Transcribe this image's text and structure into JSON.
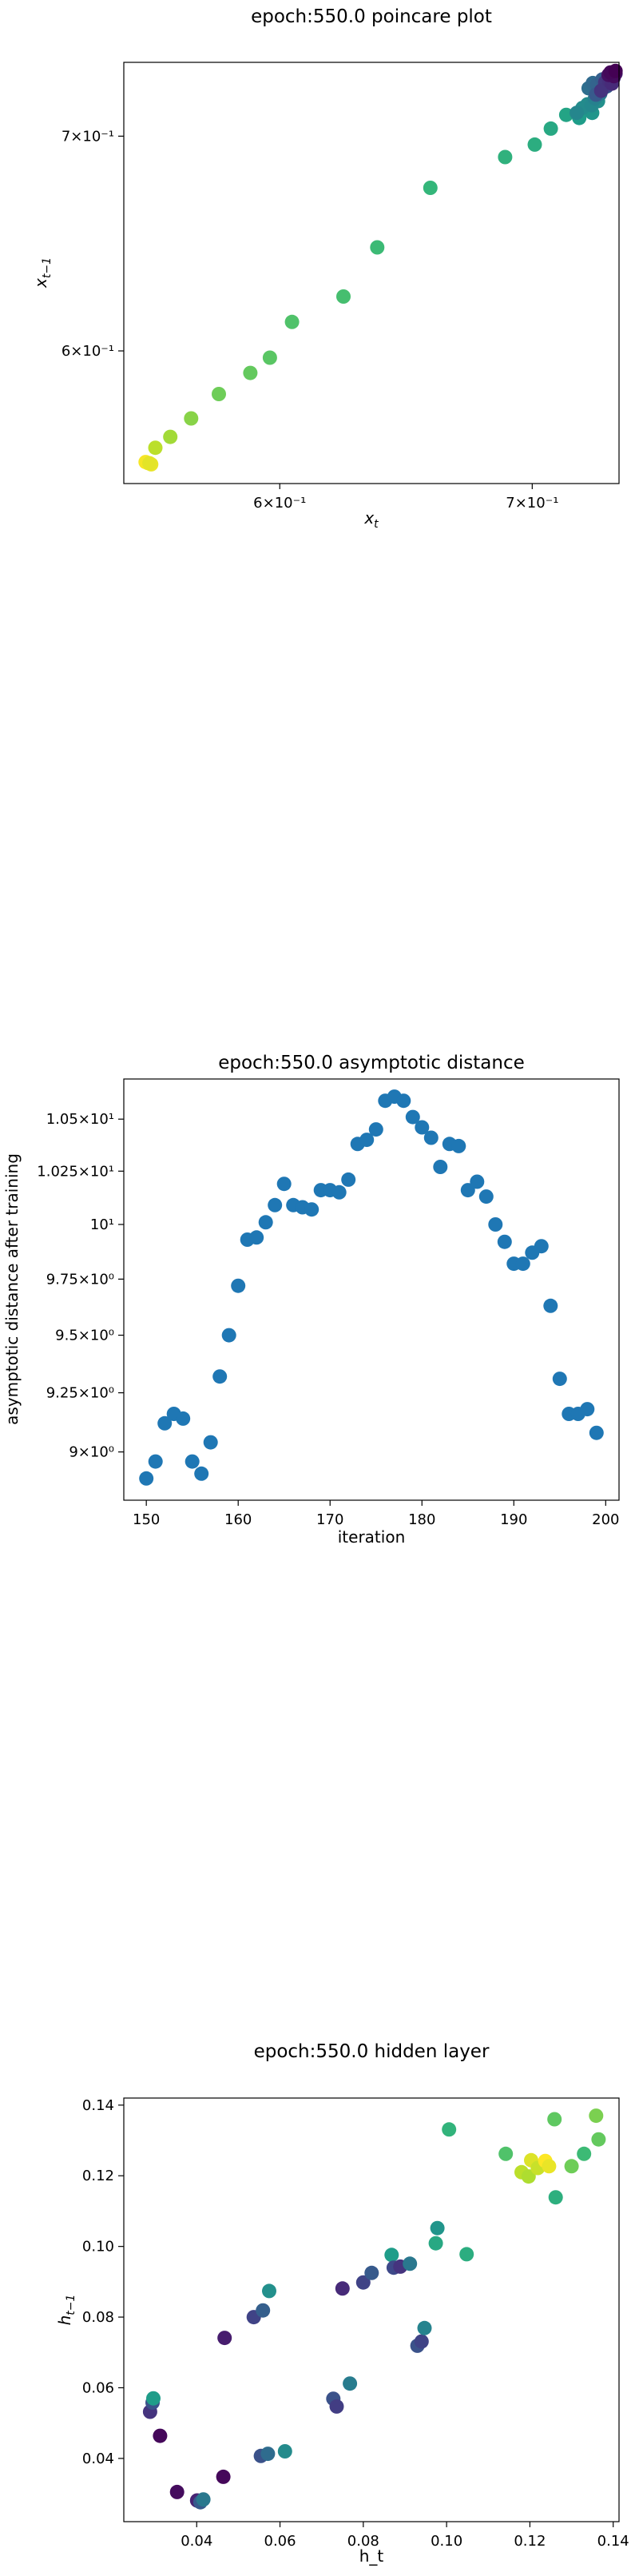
{
  "chart_data": [
    {
      "type": "scatter",
      "title": "epoch:550.0 poincare plot",
      "xlabel": "x_t",
      "ylabel": "x_{t−1}",
      "xscale": "log",
      "yscale": "log",
      "xlim": [
        0.5455,
        0.7381
      ],
      "ylim": [
        0.5455,
        0.7381
      ],
      "xticks": [
        {
          "value": 0.6,
          "label": "6×10⁻¹"
        },
        {
          "value": 0.7,
          "label": "7×10⁻¹"
        }
      ],
      "yticks": [
        {
          "value": 0.6,
          "label": "6×10⁻¹"
        },
        {
          "value": 0.7,
          "label": "7×10⁻¹"
        }
      ],
      "colormap": "viridis",
      "points": [
        {
          "x": 0.5536,
          "y": 0.5536,
          "c": 0.98
        },
        {
          "x": 0.5547,
          "y": 0.5531,
          "c": 0.97
        },
        {
          "x": 0.5528,
          "y": 0.554,
          "c": 0.99
        },
        {
          "x": 0.5541,
          "y": 0.5535,
          "c": 0.96
        },
        {
          "x": 0.5561,
          "y": 0.5597,
          "c": 0.9
        },
        {
          "x": 0.5612,
          "y": 0.5641,
          "c": 0.86
        },
        {
          "x": 0.5684,
          "y": 0.5716,
          "c": 0.82
        },
        {
          "x": 0.5781,
          "y": 0.5817,
          "c": 0.78
        },
        {
          "x": 0.5893,
          "y": 0.5906,
          "c": 0.76
        },
        {
          "x": 0.5964,
          "y": 0.5971,
          "c": 0.74
        },
        {
          "x": 0.6045,
          "y": 0.6126,
          "c": 0.72
        },
        {
          "x": 0.6238,
          "y": 0.6239,
          "c": 0.7
        },
        {
          "x": 0.6368,
          "y": 0.6463,
          "c": 0.68
        },
        {
          "x": 0.6578,
          "y": 0.6745,
          "c": 0.66
        },
        {
          "x": 0.6885,
          "y": 0.6896,
          "c": 0.64
        },
        {
          "x": 0.7011,
          "y": 0.6958,
          "c": 0.62
        },
        {
          "x": 0.708,
          "y": 0.7038,
          "c": 0.6
        },
        {
          "x": 0.7147,
          "y": 0.7108,
          "c": 0.58
        },
        {
          "x": 0.7204,
          "y": 0.7092,
          "c": 0.55
        },
        {
          "x": 0.7261,
          "y": 0.7118,
          "c": 0.52
        },
        {
          "x": 0.7287,
          "y": 0.7178,
          "c": 0.5
        },
        {
          "x": 0.7218,
          "y": 0.7143,
          "c": 0.49
        },
        {
          "x": 0.724,
          "y": 0.7162,
          "c": 0.48
        },
        {
          "x": 0.7259,
          "y": 0.7157,
          "c": 0.47
        },
        {
          "x": 0.7193,
          "y": 0.7118,
          "c": 0.46
        },
        {
          "x": 0.7273,
          "y": 0.7193,
          "c": 0.44
        },
        {
          "x": 0.7297,
          "y": 0.7217,
          "c": 0.42
        },
        {
          "x": 0.7311,
          "y": 0.7247,
          "c": 0.4
        },
        {
          "x": 0.7325,
          "y": 0.7254,
          "c": 0.38
        },
        {
          "x": 0.7245,
          "y": 0.7245,
          "c": 0.36
        },
        {
          "x": 0.7264,
          "y": 0.7272,
          "c": 0.34
        },
        {
          "x": 0.7283,
          "y": 0.7264,
          "c": 0.32
        },
        {
          "x": 0.7306,
          "y": 0.7291,
          "c": 0.3
        },
        {
          "x": 0.7278,
          "y": 0.7212,
          "c": 0.28
        },
        {
          "x": 0.733,
          "y": 0.7288,
          "c": 0.26
        },
        {
          "x": 0.7342,
          "y": 0.7305,
          "c": 0.24
        },
        {
          "x": 0.7329,
          "y": 0.7259,
          "c": 0.22
        },
        {
          "x": 0.7351,
          "y": 0.7313,
          "c": 0.2
        },
        {
          "x": 0.7356,
          "y": 0.7298,
          "c": 0.18
        },
        {
          "x": 0.7319,
          "y": 0.7276,
          "c": 0.16
        },
        {
          "x": 0.7301,
          "y": 0.7232,
          "c": 0.15
        },
        {
          "x": 0.7337,
          "y": 0.7283,
          "c": 0.14
        },
        {
          "x": 0.7349,
          "y": 0.7269,
          "c": 0.12
        },
        {
          "x": 0.7361,
          "y": 0.7317,
          "c": 0.1
        },
        {
          "x": 0.7365,
          "y": 0.7322,
          "c": 0.08
        },
        {
          "x": 0.7354,
          "y": 0.7325,
          "c": 0.06
        },
        {
          "x": 0.7334,
          "y": 0.7315,
          "c": 0.04
        },
        {
          "x": 0.7358,
          "y": 0.7308,
          "c": 0.03
        },
        {
          "x": 0.7343,
          "y": 0.7328,
          "c": 0.02
        },
        {
          "x": 0.7365,
          "y": 0.7336,
          "c": 0.0
        }
      ]
    },
    {
      "type": "scatter",
      "title": "epoch:550.0 asymptotic distance",
      "xlabel": "iteration",
      "ylabel": "asymptotic distance after training",
      "yscale": "log",
      "xlim": [
        147.55,
        201.45
      ],
      "ylim": [
        8.801,
        10.697
      ],
      "xticks": [
        {
          "value": 150,
          "label": "150"
        },
        {
          "value": 160,
          "label": "160"
        },
        {
          "value": 170,
          "label": "170"
        },
        {
          "value": 180,
          "label": "180"
        },
        {
          "value": 190,
          "label": "190"
        },
        {
          "value": 200,
          "label": "200"
        }
      ],
      "yticks": [
        {
          "value": 9.0,
          "label": "9×10⁰"
        },
        {
          "value": 9.25,
          "label": "9.25×10⁰"
        },
        {
          "value": 9.5,
          "label": "9.5×10⁰"
        },
        {
          "value": 9.75,
          "label": "9.75×10⁰"
        },
        {
          "value": 10.0,
          "label": "10¹"
        },
        {
          "value": 10.25,
          "label": "1.025×10¹"
        },
        {
          "value": 10.5,
          "label": "1.05×10¹"
        }
      ],
      "color": "#1f77b4",
      "points": [
        {
          "x": 150,
          "y": 8.89
        },
        {
          "x": 151,
          "y": 8.96
        },
        {
          "x": 152,
          "y": 9.12
        },
        {
          "x": 153,
          "y": 9.16
        },
        {
          "x": 154,
          "y": 9.14
        },
        {
          "x": 155,
          "y": 8.96
        },
        {
          "x": 156,
          "y": 8.91
        },
        {
          "x": 157,
          "y": 9.04
        },
        {
          "x": 158,
          "y": 9.32
        },
        {
          "x": 159,
          "y": 9.5
        },
        {
          "x": 160,
          "y": 9.72
        },
        {
          "x": 161,
          "y": 9.93
        },
        {
          "x": 162,
          "y": 9.94
        },
        {
          "x": 163,
          "y": 10.01
        },
        {
          "x": 164,
          "y": 10.09
        },
        {
          "x": 165,
          "y": 10.19
        },
        {
          "x": 166,
          "y": 10.09
        },
        {
          "x": 167,
          "y": 10.08
        },
        {
          "x": 168,
          "y": 10.07
        },
        {
          "x": 169,
          "y": 10.16
        },
        {
          "x": 170,
          "y": 10.16
        },
        {
          "x": 171,
          "y": 10.15
        },
        {
          "x": 172,
          "y": 10.21
        },
        {
          "x": 173,
          "y": 10.38
        },
        {
          "x": 174,
          "y": 10.4
        },
        {
          "x": 175,
          "y": 10.45
        },
        {
          "x": 176,
          "y": 10.59
        },
        {
          "x": 177,
          "y": 10.61
        },
        {
          "x": 178,
          "y": 10.59
        },
        {
          "x": 179,
          "y": 10.51
        },
        {
          "x": 180,
          "y": 10.46
        },
        {
          "x": 181,
          "y": 10.41
        },
        {
          "x": 182,
          "y": 10.27
        },
        {
          "x": 183,
          "y": 10.38
        },
        {
          "x": 184,
          "y": 10.37
        },
        {
          "x": 185,
          "y": 10.16
        },
        {
          "x": 186,
          "y": 10.2
        },
        {
          "x": 187,
          "y": 10.13
        },
        {
          "x": 188,
          "y": 10.0
        },
        {
          "x": 189,
          "y": 9.92
        },
        {
          "x": 190,
          "y": 9.82
        },
        {
          "x": 191,
          "y": 9.82
        },
        {
          "x": 192,
          "y": 9.87
        },
        {
          "x": 193,
          "y": 9.9
        },
        {
          "x": 194,
          "y": 9.63
        },
        {
          "x": 195,
          "y": 9.31
        },
        {
          "x": 196,
          "y": 9.16
        },
        {
          "x": 197,
          "y": 9.16
        },
        {
          "x": 198,
          "y": 9.18
        },
        {
          "x": 199,
          "y": 9.08
        }
      ]
    },
    {
      "type": "scatter",
      "title": "epoch:550.0 hidden layer",
      "xlabel": "h_t",
      "ylabel": "h_{t−1}",
      "xlim": [
        0.0225,
        0.1414
      ],
      "ylim": [
        0.0221,
        0.142
      ],
      "xticks": [
        {
          "value": 0.04,
          "label": "0.04"
        },
        {
          "value": 0.06,
          "label": "0.06"
        },
        {
          "value": 0.08,
          "label": "0.08"
        },
        {
          "value": 0.1,
          "label": "0.10"
        },
        {
          "value": 0.12,
          "label": "0.12"
        },
        {
          "value": 0.14,
          "label": "0.14"
        }
      ],
      "yticks": [
        {
          "value": 0.04,
          "label": "0.04"
        },
        {
          "value": 0.06,
          "label": "0.06"
        },
        {
          "value": 0.08,
          "label": "0.08"
        },
        {
          "value": 0.1,
          "label": "0.10"
        },
        {
          "value": 0.12,
          "label": "0.12"
        },
        {
          "value": 0.14,
          "label": "0.14"
        }
      ],
      "colormap": "viridis",
      "points": [
        {
          "x": 0.0288,
          "y": 0.0532,
          "c": 0.15
        },
        {
          "x": 0.0294,
          "y": 0.0558,
          "c": 0.25
        },
        {
          "x": 0.0296,
          "y": 0.057,
          "c": 0.55
        },
        {
          "x": 0.0312,
          "y": 0.0464,
          "c": 0.02
        },
        {
          "x": 0.0353,
          "y": 0.0305,
          "c": 0.03
        },
        {
          "x": 0.0401,
          "y": 0.0281,
          "c": 0.1
        },
        {
          "x": 0.0409,
          "y": 0.0276,
          "c": 0.28
        },
        {
          "x": 0.0416,
          "y": 0.0284,
          "c": 0.4
        },
        {
          "x": 0.0464,
          "y": 0.0348,
          "c": 0.02
        },
        {
          "x": 0.0467,
          "y": 0.0741,
          "c": 0.08
        },
        {
          "x": 0.0537,
          "y": 0.08,
          "c": 0.2
        },
        {
          "x": 0.0554,
          "y": 0.0407,
          "c": 0.25
        },
        {
          "x": 0.0559,
          "y": 0.0819,
          "c": 0.3
        },
        {
          "x": 0.0571,
          "y": 0.0413,
          "c": 0.35
        },
        {
          "x": 0.0574,
          "y": 0.0874,
          "c": 0.5
        },
        {
          "x": 0.0612,
          "y": 0.042,
          "c": 0.48
        },
        {
          "x": 0.0728,
          "y": 0.0569,
          "c": 0.25
        },
        {
          "x": 0.0736,
          "y": 0.0547,
          "c": 0.18
        },
        {
          "x": 0.075,
          "y": 0.0881,
          "c": 0.12
        },
        {
          "x": 0.0768,
          "y": 0.0612,
          "c": 0.42
        },
        {
          "x": 0.08,
          "y": 0.0898,
          "c": 0.2
        },
        {
          "x": 0.082,
          "y": 0.0925,
          "c": 0.28
        },
        {
          "x": 0.0868,
          "y": 0.0976,
          "c": 0.55
        },
        {
          "x": 0.0873,
          "y": 0.094,
          "c": 0.22
        },
        {
          "x": 0.0889,
          "y": 0.0943,
          "c": 0.15
        },
        {
          "x": 0.0912,
          "y": 0.0951,
          "c": 0.4
        },
        {
          "x": 0.093,
          "y": 0.0719,
          "c": 0.25
        },
        {
          "x": 0.094,
          "y": 0.0731,
          "c": 0.2
        },
        {
          "x": 0.0947,
          "y": 0.0769,
          "c": 0.45
        },
        {
          "x": 0.0974,
          "y": 0.1009,
          "c": 0.6
        },
        {
          "x": 0.0978,
          "y": 0.1052,
          "c": 0.52
        },
        {
          "x": 0.1006,
          "y": 0.1331,
          "c": 0.65
        },
        {
          "x": 0.1048,
          "y": 0.0978,
          "c": 0.62
        },
        {
          "x": 0.1142,
          "y": 0.1262,
          "c": 0.72
        },
        {
          "x": 0.118,
          "y": 0.121,
          "c": 0.9
        },
        {
          "x": 0.1197,
          "y": 0.1198,
          "c": 0.88
        },
        {
          "x": 0.1203,
          "y": 0.1244,
          "c": 0.95
        },
        {
          "x": 0.1219,
          "y": 0.1222,
          "c": 0.92
        },
        {
          "x": 0.1237,
          "y": 0.1242,
          "c": 1.0
        },
        {
          "x": 0.1246,
          "y": 0.1227,
          "c": 0.97
        },
        {
          "x": 0.1259,
          "y": 0.136,
          "c": 0.75
        },
        {
          "x": 0.1262,
          "y": 0.1139,
          "c": 0.63
        },
        {
          "x": 0.13,
          "y": 0.1227,
          "c": 0.78
        },
        {
          "x": 0.133,
          "y": 0.1262,
          "c": 0.68
        },
        {
          "x": 0.1359,
          "y": 0.137,
          "c": 0.8
        },
        {
          "x": 0.1365,
          "y": 0.1303,
          "c": 0.76
        }
      ]
    }
  ]
}
